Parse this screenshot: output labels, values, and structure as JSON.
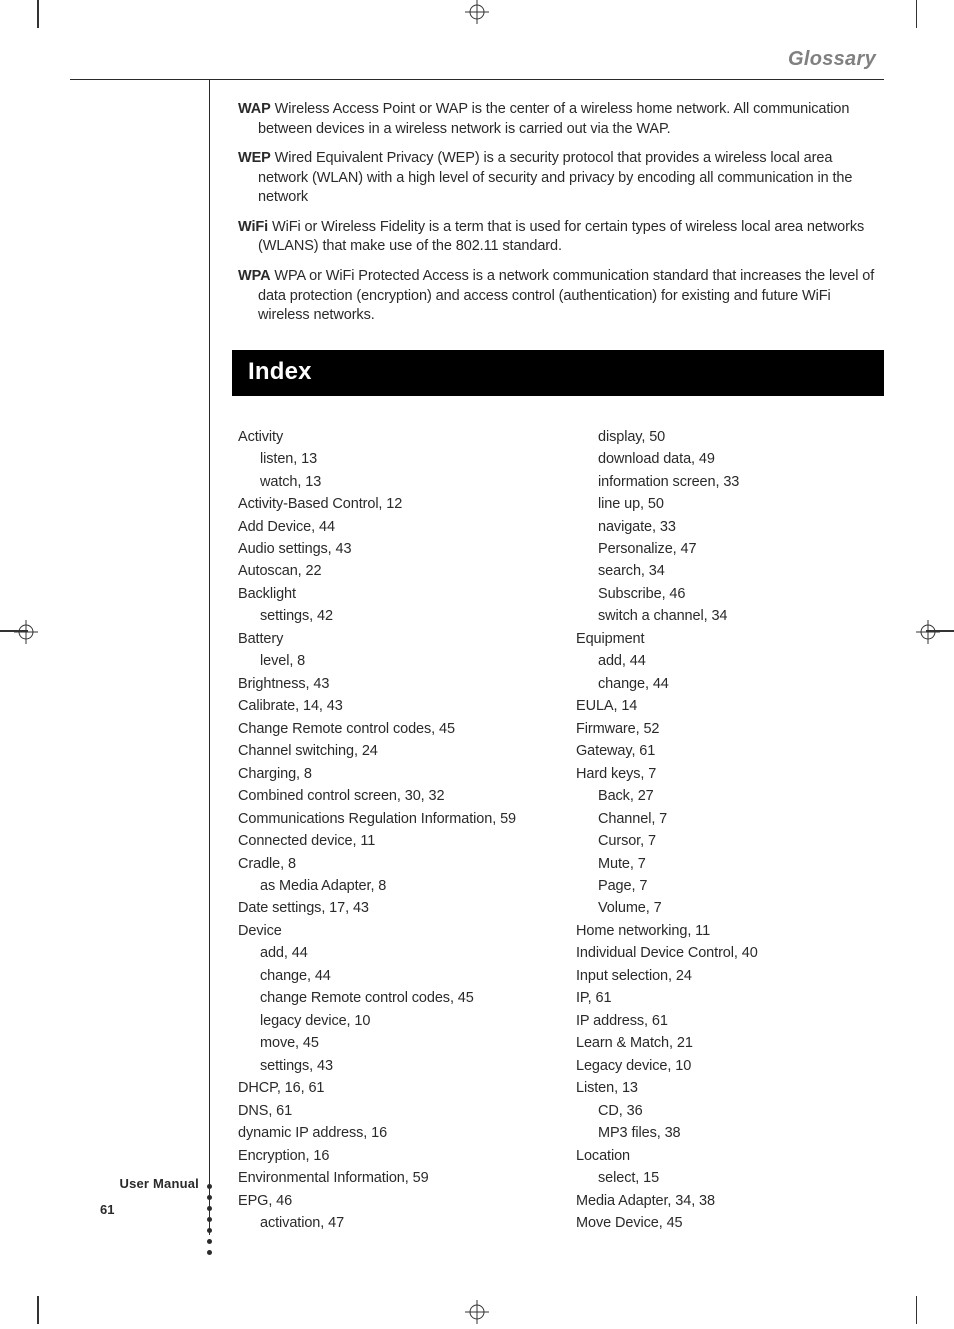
{
  "page": {
    "running_head": "Glossary",
    "gutter_label": "User Manual",
    "page_number": "61",
    "colors": {
      "running_head": "#808080",
      "text": "#2a2a2a",
      "index_bar_bg": "#000000",
      "index_bar_fg": "#ffffff",
      "rule": "#2a2a2a",
      "background": "#ffffff"
    }
  },
  "glossary": [
    {
      "term": "WAP",
      "def": "Wireless Access Point or WAP is the center of a wireless home network. All communication between devices in a wireless network is carried out via the WAP."
    },
    {
      "term": "WEP",
      "def": "Wired Equivalent Privacy (WEP) is a security protocol that provides a wireless local area network (WLAN) with a high level of security and privacy by encoding all communication in the network"
    },
    {
      "term": "WiFi",
      "def": "WiFi or Wireless Fidelity is a term that is used for certain types of wireless local area networks (WLANS) that make use of the 802.11 standard."
    },
    {
      "term": "WPA",
      "def": "WPA or WiFi Protected Access is a network communication standard that increases the level of data protection (encryption) and access control (authentication) for existing and future WiFi wireless networks."
    }
  ],
  "index_heading": "Index",
  "index_left": [
    {
      "t": "Activity",
      "l": 0
    },
    {
      "t": "listen, 13",
      "l": 1
    },
    {
      "t": "watch, 13",
      "l": 1
    },
    {
      "t": "Activity-Based Control, 12",
      "l": 0
    },
    {
      "t": "Add Device, 44",
      "l": 0
    },
    {
      "t": "Audio settings, 43",
      "l": 0
    },
    {
      "t": "Autoscan, 22",
      "l": 0
    },
    {
      "t": "Backlight",
      "l": 0
    },
    {
      "t": "settings, 42",
      "l": 1
    },
    {
      "t": "Battery",
      "l": 0
    },
    {
      "t": "level, 8",
      "l": 1
    },
    {
      "t": "Brightness, 43",
      "l": 0
    },
    {
      "t": "Calibrate, 14, 43",
      "l": 0
    },
    {
      "t": "Change Remote control codes, 45",
      "l": 0
    },
    {
      "t": "Channel switching, 24",
      "l": 0
    },
    {
      "t": "Charging, 8",
      "l": 0
    },
    {
      "t": "Combined control screen, 30, 32",
      "l": 0
    },
    {
      "t": "Communications Regulation Information, 59",
      "l": 0
    },
    {
      "t": "Connected device, 11",
      "l": 0
    },
    {
      "t": "Cradle, 8",
      "l": 0
    },
    {
      "t": "as Media Adapter, 8",
      "l": 1
    },
    {
      "t": "Date settings, 17, 43",
      "l": 0
    },
    {
      "t": "Device",
      "l": 0
    },
    {
      "t": "add, 44",
      "l": 1
    },
    {
      "t": "change, 44",
      "l": 1
    },
    {
      "t": "change Remote control codes, 45",
      "l": 1
    },
    {
      "t": "legacy device, 10",
      "l": 1
    },
    {
      "t": "move, 45",
      "l": 1
    },
    {
      "t": "settings, 43",
      "l": 1
    },
    {
      "t": "DHCP, 16, 61",
      "l": 0
    },
    {
      "t": "DNS, 61",
      "l": 0
    },
    {
      "t": "dynamic IP address, 16",
      "l": 0
    },
    {
      "t": "Encryption, 16",
      "l": 0
    },
    {
      "t": "Environmental Information, 59",
      "l": 0
    },
    {
      "t": "EPG, 46",
      "l": 0
    },
    {
      "t": "activation, 47",
      "l": 1
    }
  ],
  "index_right": [
    {
      "t": "display, 50",
      "l": 1
    },
    {
      "t": "download data, 49",
      "l": 1
    },
    {
      "t": "information screen, 33",
      "l": 1
    },
    {
      "t": "line up, 50",
      "l": 1
    },
    {
      "t": "navigate, 33",
      "l": 1
    },
    {
      "t": "Personalize, 47",
      "l": 1
    },
    {
      "t": "search, 34",
      "l": 1
    },
    {
      "t": "Subscribe, 46",
      "l": 1
    },
    {
      "t": "switch a channel, 34",
      "l": 1
    },
    {
      "t": "Equipment",
      "l": 0
    },
    {
      "t": "add, 44",
      "l": 1
    },
    {
      "t": "change, 44",
      "l": 1
    },
    {
      "t": "EULA, 14",
      "l": 0
    },
    {
      "t": "Firmware, 52",
      "l": 0
    },
    {
      "t": "Gateway, 61",
      "l": 0
    },
    {
      "t": "Hard keys, 7",
      "l": 0
    },
    {
      "t": "Back, 27",
      "l": 1
    },
    {
      "t": "Channel, 7",
      "l": 1
    },
    {
      "t": "Cursor, 7",
      "l": 1
    },
    {
      "t": "Mute, 7",
      "l": 1
    },
    {
      "t": "Page, 7",
      "l": 1
    },
    {
      "t": "Volume, 7",
      "l": 1
    },
    {
      "t": "Home networking, 11",
      "l": 0
    },
    {
      "t": "Individual Device Control, 40",
      "l": 0
    },
    {
      "t": "Input selection, 24",
      "l": 0
    },
    {
      "t": "IP, 61",
      "l": 0
    },
    {
      "t": "IP address, 61",
      "l": 0
    },
    {
      "t": "Learn & Match, 21",
      "l": 0
    },
    {
      "t": "Legacy device, 10",
      "l": 0
    },
    {
      "t": "Listen, 13",
      "l": 0
    },
    {
      "t": "CD, 36",
      "l": 1
    },
    {
      "t": "MP3 files, 38",
      "l": 1
    },
    {
      "t": "Location",
      "l": 0
    },
    {
      "t": "select, 15",
      "l": 1
    },
    {
      "t": "Media Adapter, 34, 38",
      "l": 0
    },
    {
      "t": "Move Device, 45",
      "l": 0
    }
  ]
}
